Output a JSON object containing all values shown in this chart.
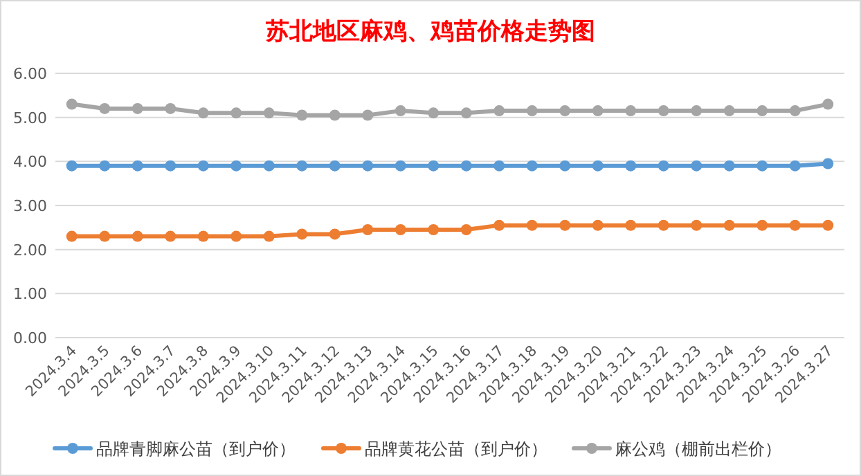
{
  "chart_data": {
    "type": "line",
    "title": "苏北地区麻鸡、鸡苗价格走势图",
    "categories": [
      "2024.3.4",
      "2024.3.5",
      "2024.3.6",
      "2024.3.7",
      "2024.3.8",
      "2024.3.9",
      "2024.3.10",
      "2024.3.11",
      "2024.3.12",
      "2024.3.13",
      "2024.3.14",
      "2024.3.15",
      "2024.3.16",
      "2024.3.17",
      "2024.3.18",
      "2024.3.19",
      "2024.3.20",
      "2024.3.21",
      "2024.3.22",
      "2024.3.23",
      "2024.3.24",
      "2024.3.25",
      "2024.3.26",
      "2024.3.27"
    ],
    "series": [
      {
        "name": "品牌青脚麻公苗（到户价）",
        "color": "#5b9bd5",
        "values": [
          3.9,
          3.9,
          3.9,
          3.9,
          3.9,
          3.9,
          3.9,
          3.9,
          3.9,
          3.9,
          3.9,
          3.9,
          3.9,
          3.9,
          3.9,
          3.9,
          3.9,
          3.9,
          3.9,
          3.9,
          3.9,
          3.9,
          3.9,
          3.95
        ]
      },
      {
        "name": "品牌黄花公苗（到户价）",
        "color": "#ed7d31",
        "values": [
          2.3,
          2.3,
          2.3,
          2.3,
          2.3,
          2.3,
          2.3,
          2.35,
          2.35,
          2.45,
          2.45,
          2.45,
          2.45,
          2.55,
          2.55,
          2.55,
          2.55,
          2.55,
          2.55,
          2.55,
          2.55,
          2.55,
          2.55,
          2.55
        ]
      },
      {
        "name": "麻公鸡（棚前出栏价）",
        "color": "#a5a5a5",
        "values": [
          5.3,
          5.2,
          5.2,
          5.2,
          5.1,
          5.1,
          5.1,
          5.05,
          5.05,
          5.05,
          5.15,
          5.1,
          5.1,
          5.15,
          5.15,
          5.15,
          5.15,
          5.15,
          5.15,
          5.15,
          5.15,
          5.15,
          5.15,
          5.3
        ]
      }
    ],
    "ylim": [
      0,
      6
    ],
    "yticks": [
      {
        "value": 0,
        "label": "0.00"
      },
      {
        "value": 1,
        "label": "1.00"
      },
      {
        "value": 2,
        "label": "2.00"
      },
      {
        "value": 3,
        "label": "3.00"
      },
      {
        "value": 4,
        "label": "4.00"
      },
      {
        "value": 5,
        "label": "5.00"
      },
      {
        "value": 6,
        "label": "6.00"
      }
    ],
    "grid": "y",
    "legend": "bottom",
    "marker": "circle",
    "line_style": "solid"
  }
}
